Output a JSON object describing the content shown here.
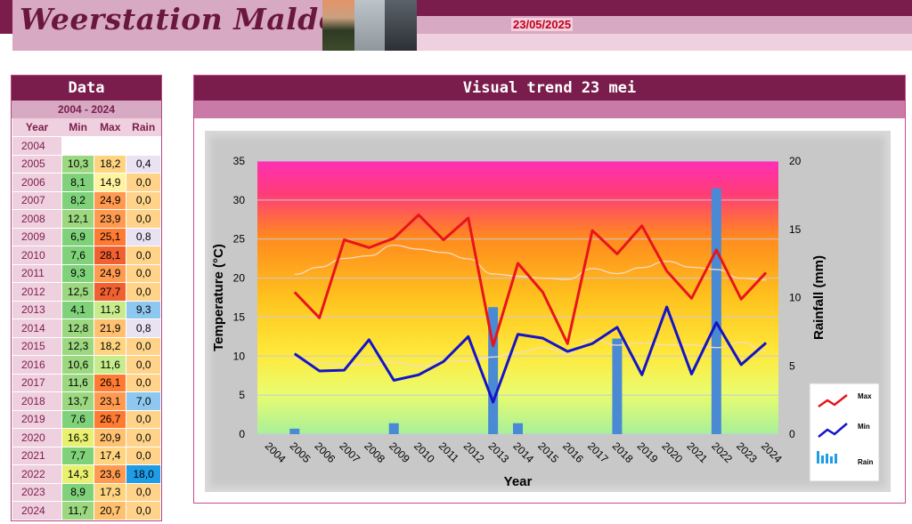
{
  "header": {
    "title": "Weerstation Malderen",
    "date": "23/05/2025"
  },
  "table": {
    "title": "Data",
    "range": "2004 - 2024",
    "columns": [
      "Year",
      "Min",
      "Max",
      "Rain"
    ],
    "rows": [
      {
        "year": "2004",
        "min": "",
        "max": "",
        "rain": ""
      },
      {
        "year": "2005",
        "min": "10,3",
        "max": "18,2",
        "rain": "0,4"
      },
      {
        "year": "2006",
        "min": "8,1",
        "max": "14,9",
        "rain": "0,0"
      },
      {
        "year": "2007",
        "min": "8,2",
        "max": "24,9",
        "rain": "0,0"
      },
      {
        "year": "2008",
        "min": "12,1",
        "max": "23,9",
        "rain": "0,0"
      },
      {
        "year": "2009",
        "min": "6,9",
        "max": "25,1",
        "rain": "0,8"
      },
      {
        "year": "2010",
        "min": "7,6",
        "max": "28,1",
        "rain": "0,0"
      },
      {
        "year": "2011",
        "min": "9,3",
        "max": "24,9",
        "rain": "0,0"
      },
      {
        "year": "2012",
        "min": "12,5",
        "max": "27,7",
        "rain": "0,0"
      },
      {
        "year": "2013",
        "min": "4,1",
        "max": "11,3",
        "rain": "9,3"
      },
      {
        "year": "2014",
        "min": "12,8",
        "max": "21,9",
        "rain": "0,8"
      },
      {
        "year": "2015",
        "min": "12,3",
        "max": "18,2",
        "rain": "0,0"
      },
      {
        "year": "2016",
        "min": "10,6",
        "max": "11,6",
        "rain": "0,0"
      },
      {
        "year": "2017",
        "min": "11,6",
        "max": "26,1",
        "rain": "0,0"
      },
      {
        "year": "2018",
        "min": "13,7",
        "max": "23,1",
        "rain": "7,0"
      },
      {
        "year": "2019",
        "min": "7,6",
        "max": "26,7",
        "rain": "0,0"
      },
      {
        "year": "2020",
        "min": "16,3",
        "max": "20,9",
        "rain": "0,0"
      },
      {
        "year": "2021",
        "min": "7,7",
        "max": "17,4",
        "rain": "0,0"
      },
      {
        "year": "2022",
        "min": "14,3",
        "max": "23,6",
        "rain": "18,0"
      },
      {
        "year": "2023",
        "min": "8,9",
        "max": "17,3",
        "rain": "0,0"
      },
      {
        "year": "2024",
        "min": "11,7",
        "max": "20,7",
        "rain": "0,0"
      }
    ]
  },
  "chart_title": "Visual trend 23 mei",
  "colors": {
    "max_line": "#e8141c",
    "min_line": "#1414c8",
    "rain_bar": "#4a8ad4",
    "trend_line": "#f4dcc4"
  },
  "chart_data": {
    "type": "line",
    "title": "Visual trend 23 mei",
    "xlabel": "Year",
    "ylabel": "Temperature (°C)",
    "y2label": "Rainfall (mm)",
    "x": [
      "2004",
      "2005",
      "2006",
      "2007",
      "2008",
      "2009",
      "2010",
      "2011",
      "2012",
      "2013",
      "2014",
      "2015",
      "2016",
      "2017",
      "2018",
      "2019",
      "2020",
      "2021",
      "2022",
      "2023",
      "2024"
    ],
    "ylim": [
      0,
      35
    ],
    "y2lim": [
      0,
      20
    ],
    "yticks": [
      "0",
      "5",
      "10",
      "15",
      "20",
      "25",
      "30",
      "35"
    ],
    "y2ticks": [
      "0",
      "5",
      "10",
      "15",
      "20"
    ],
    "series": [
      {
        "name": "Max",
        "type": "line",
        "axis": "left",
        "values": [
          null,
          18.2,
          14.9,
          24.9,
          23.9,
          25.1,
          28.1,
          24.9,
          27.7,
          11.3,
          21.9,
          18.2,
          11.6,
          26.1,
          23.1,
          26.7,
          20.9,
          17.4,
          23.6,
          17.3,
          20.7
        ]
      },
      {
        "name": "Min",
        "type": "line",
        "axis": "left",
        "values": [
          null,
          10.3,
          8.1,
          8.2,
          12.1,
          6.9,
          7.6,
          9.3,
          12.5,
          4.1,
          12.8,
          12.3,
          10.6,
          11.6,
          13.7,
          7.6,
          16.3,
          7.7,
          14.3,
          8.9,
          11.7
        ]
      },
      {
        "name": "Rain",
        "type": "bar",
        "axis": "right",
        "values": [
          null,
          0.4,
          0.0,
          0.0,
          0.0,
          0.8,
          0.0,
          0.0,
          0.0,
          9.3,
          0.8,
          0.0,
          0.0,
          0.0,
          7.0,
          0.0,
          0.0,
          0.0,
          18.0,
          0.0,
          0.0
        ]
      }
    ],
    "legend": {
      "position": "right",
      "entries": [
        "Max",
        "Min",
        "Rain"
      ]
    },
    "grid": true
  }
}
